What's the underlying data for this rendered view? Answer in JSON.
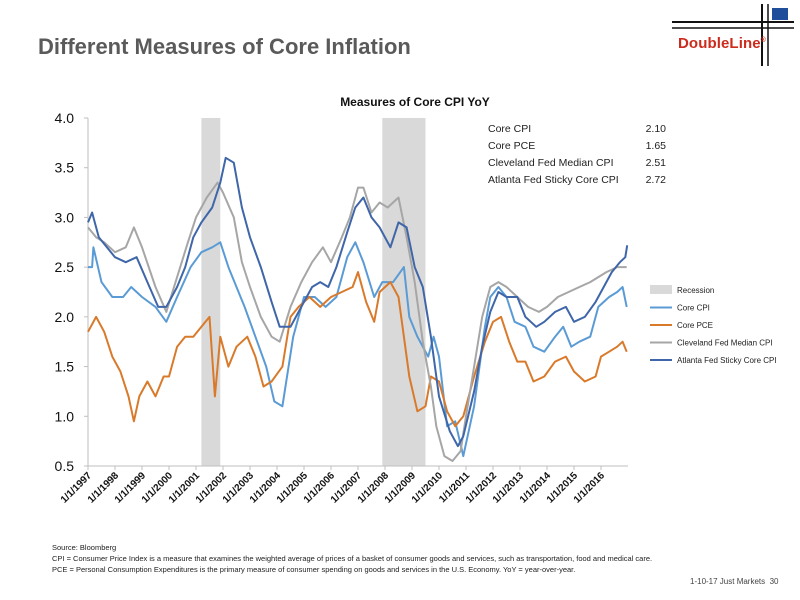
{
  "header": {
    "title": "Different Measures of Core Inflation",
    "logo_text": "DoubleLine",
    "logo_mark": "®"
  },
  "footer": {
    "source": "Source: Bloomberg",
    "note": "CPI = Consumer Price Index is a measure that examines the weighted average of prices of a basket of consumer goods and services, such as transportation, food and medical care. PCE = Personal Consumption Expenditures is the primary measure of consumer spending on goods and services in the U.S. Economy. YoY = year-over-year.",
    "page_label": "1-10-17 Just Markets",
    "page_number": "30"
  },
  "colors": {
    "title": "#5a5a5a",
    "brand_red": "#cc2b1d",
    "recession": "#d9d9d9",
    "core_cpi": "#5b9bd5",
    "core_pce": "#d97a2b",
    "cleveland": "#a6a6a6",
    "atlanta": "#3f66a8"
  },
  "chart_data": {
    "type": "line",
    "title": "Measures of Core CPI YoY",
    "xlabel": "",
    "ylabel": "",
    "ylim": [
      0.5,
      4.0
    ],
    "xlim": [
      1997.0,
      2017.0
    ],
    "y_ticks": [
      "0.5",
      "1.0",
      "1.5",
      "2.0",
      "2.5",
      "3.0",
      "3.5",
      "4.0"
    ],
    "x_ticks": [
      "1/1/1997",
      "1/1/1998",
      "1/1/1999",
      "1/1/2000",
      "1/1/2001",
      "1/1/2002",
      "1/1/2003",
      "1/1/2004",
      "1/1/2005",
      "1/1/2006",
      "1/1/2007",
      "1/1/2008",
      "1/1/2009",
      "1/1/2010",
      "1/1/2011",
      "1/1/2012",
      "1/1/2013",
      "1/1/2014",
      "1/1/2015",
      "1/1/2016"
    ],
    "grid": false,
    "legend_position": "right",
    "recession_label": "Recession",
    "recessions": [
      [
        2001.2,
        2001.9
      ],
      [
        2007.9,
        2009.5
      ]
    ],
    "summary_table": [
      {
        "label": "Core CPI",
        "value": "2.10"
      },
      {
        "label": "Core PCE",
        "value": "1.65"
      },
      {
        "label": "Cleveland Fed Median CPI",
        "value": "2.51"
      },
      {
        "label": "Atlanta Fed Sticky Core CPI",
        "value": "2.72"
      }
    ],
    "series": [
      {
        "name": "Core CPI",
        "color": "#5b9bd5",
        "points": [
          [
            1997.0,
            2.5
          ],
          [
            1997.15,
            2.5
          ],
          [
            1997.2,
            2.7
          ],
          [
            1997.5,
            2.35
          ],
          [
            1997.9,
            2.2
          ],
          [
            1998.3,
            2.2
          ],
          [
            1998.6,
            2.3
          ],
          [
            1999.0,
            2.2
          ],
          [
            1999.5,
            2.1
          ],
          [
            1999.9,
            1.95
          ],
          [
            2000.3,
            2.2
          ],
          [
            2000.8,
            2.5
          ],
          [
            2001.2,
            2.65
          ],
          [
            2001.6,
            2.7
          ],
          [
            2001.9,
            2.75
          ],
          [
            2002.2,
            2.5
          ],
          [
            2002.5,
            2.3
          ],
          [
            2002.8,
            2.1
          ],
          [
            2003.2,
            1.8
          ],
          [
            2003.6,
            1.5
          ],
          [
            2003.9,
            1.15
          ],
          [
            2004.2,
            1.1
          ],
          [
            2004.6,
            1.8
          ],
          [
            2005.0,
            2.2
          ],
          [
            2005.4,
            2.2
          ],
          [
            2005.8,
            2.1
          ],
          [
            2006.2,
            2.2
          ],
          [
            2006.6,
            2.6
          ],
          [
            2006.9,
            2.75
          ],
          [
            2007.2,
            2.55
          ],
          [
            2007.6,
            2.2
          ],
          [
            2007.9,
            2.35
          ],
          [
            2008.3,
            2.35
          ],
          [
            2008.7,
            2.5
          ],
          [
            2008.9,
            2.0
          ],
          [
            2009.2,
            1.8
          ],
          [
            2009.6,
            1.6
          ],
          [
            2009.8,
            1.8
          ],
          [
            2010.0,
            1.6
          ],
          [
            2010.3,
            0.9
          ],
          [
            2010.6,
            0.95
          ],
          [
            2010.9,
            0.6
          ],
          [
            2011.3,
            1.1
          ],
          [
            2011.7,
            1.9
          ],
          [
            2011.9,
            2.2
          ],
          [
            2012.2,
            2.3
          ],
          [
            2012.5,
            2.2
          ],
          [
            2012.8,
            1.95
          ],
          [
            2013.2,
            1.9
          ],
          [
            2013.5,
            1.7
          ],
          [
            2013.9,
            1.65
          ],
          [
            2014.3,
            1.8
          ],
          [
            2014.6,
            1.9
          ],
          [
            2014.9,
            1.7
          ],
          [
            2015.2,
            1.75
          ],
          [
            2015.6,
            1.8
          ],
          [
            2015.9,
            2.1
          ],
          [
            2016.3,
            2.2
          ],
          [
            2016.6,
            2.25
          ],
          [
            2016.8,
            2.3
          ],
          [
            2016.95,
            2.1
          ]
        ]
      },
      {
        "name": "Core PCE",
        "color": "#d97a2b",
        "points": [
          [
            1997.0,
            1.85
          ],
          [
            1997.3,
            2.0
          ],
          [
            1997.6,
            1.85
          ],
          [
            1997.9,
            1.6
          ],
          [
            1998.2,
            1.45
          ],
          [
            1998.5,
            1.2
          ],
          [
            1998.7,
            0.95
          ],
          [
            1998.9,
            1.2
          ],
          [
            1999.2,
            1.35
          ],
          [
            1999.5,
            1.2
          ],
          [
            1999.8,
            1.4
          ],
          [
            2000.0,
            1.4
          ],
          [
            2000.3,
            1.7
          ],
          [
            2000.6,
            1.8
          ],
          [
            2000.9,
            1.8
          ],
          [
            2001.2,
            1.9
          ],
          [
            2001.5,
            2.0
          ],
          [
            2001.7,
            1.2
          ],
          [
            2001.9,
            1.8
          ],
          [
            2002.2,
            1.5
          ],
          [
            2002.5,
            1.7
          ],
          [
            2002.9,
            1.8
          ],
          [
            2003.2,
            1.6
          ],
          [
            2003.5,
            1.3
          ],
          [
            2003.8,
            1.35
          ],
          [
            2004.2,
            1.5
          ],
          [
            2004.5,
            2.0
          ],
          [
            2004.8,
            2.1
          ],
          [
            2005.2,
            2.2
          ],
          [
            2005.6,
            2.1
          ],
          [
            2006.0,
            2.2
          ],
          [
            2006.4,
            2.25
          ],
          [
            2006.8,
            2.3
          ],
          [
            2007.0,
            2.45
          ],
          [
            2007.3,
            2.15
          ],
          [
            2007.6,
            1.95
          ],
          [
            2007.8,
            2.25
          ],
          [
            2008.2,
            2.35
          ],
          [
            2008.5,
            2.2
          ],
          [
            2008.7,
            1.8
          ],
          [
            2008.9,
            1.4
          ],
          [
            2009.2,
            1.05
          ],
          [
            2009.5,
            1.1
          ],
          [
            2009.7,
            1.4
          ],
          [
            2010.0,
            1.35
          ],
          [
            2010.3,
            1.05
          ],
          [
            2010.6,
            0.9
          ],
          [
            2010.9,
            1.0
          ],
          [
            2011.3,
            1.4
          ],
          [
            2011.7,
            1.75
          ],
          [
            2012.0,
            1.95
          ],
          [
            2012.3,
            2.0
          ],
          [
            2012.6,
            1.75
          ],
          [
            2012.9,
            1.55
          ],
          [
            2013.2,
            1.55
          ],
          [
            2013.5,
            1.35
          ],
          [
            2013.9,
            1.4
          ],
          [
            2014.3,
            1.55
          ],
          [
            2014.7,
            1.6
          ],
          [
            2015.0,
            1.45
          ],
          [
            2015.4,
            1.35
          ],
          [
            2015.8,
            1.4
          ],
          [
            2016.0,
            1.6
          ],
          [
            2016.3,
            1.65
          ],
          [
            2016.6,
            1.7
          ],
          [
            2016.8,
            1.75
          ],
          [
            2016.95,
            1.65
          ]
        ]
      },
      {
        "name": "Cleveland Fed Median CPI",
        "color": "#a6a6a6",
        "points": [
          [
            1997.0,
            2.9
          ],
          [
            1997.3,
            2.8
          ],
          [
            1997.6,
            2.75
          ],
          [
            1998.0,
            2.65
          ],
          [
            1998.4,
            2.7
          ],
          [
            1998.7,
            2.9
          ],
          [
            1999.0,
            2.7
          ],
          [
            1999.5,
            2.3
          ],
          [
            1999.9,
            2.05
          ],
          [
            2000.3,
            2.4
          ],
          [
            2000.7,
            2.75
          ],
          [
            2001.0,
            3.0
          ],
          [
            2001.4,
            3.2
          ],
          [
            2001.8,
            3.35
          ],
          [
            2002.0,
            3.25
          ],
          [
            2002.4,
            3.0
          ],
          [
            2002.7,
            2.55
          ],
          [
            2003.0,
            2.3
          ],
          [
            2003.4,
            2.0
          ],
          [
            2003.8,
            1.8
          ],
          [
            2004.1,
            1.75
          ],
          [
            2004.5,
            2.1
          ],
          [
            2004.9,
            2.35
          ],
          [
            2005.3,
            2.55
          ],
          [
            2005.7,
            2.7
          ],
          [
            2006.0,
            2.55
          ],
          [
            2006.4,
            2.8
          ],
          [
            2006.7,
            3.0
          ],
          [
            2007.0,
            3.3
          ],
          [
            2007.2,
            3.3
          ],
          [
            2007.5,
            3.05
          ],
          [
            2007.8,
            3.15
          ],
          [
            2008.1,
            3.1
          ],
          [
            2008.5,
            3.2
          ],
          [
            2008.8,
            2.8
          ],
          [
            2009.1,
            2.35
          ],
          [
            2009.4,
            1.75
          ],
          [
            2009.7,
            1.3
          ],
          [
            2009.9,
            0.9
          ],
          [
            2010.2,
            0.6
          ],
          [
            2010.5,
            0.55
          ],
          [
            2010.8,
            0.65
          ],
          [
            2011.0,
            1.0
          ],
          [
            2011.3,
            1.5
          ],
          [
            2011.6,
            2.0
          ],
          [
            2011.9,
            2.3
          ],
          [
            2012.2,
            2.35
          ],
          [
            2012.5,
            2.3
          ],
          [
            2012.9,
            2.2
          ],
          [
            2013.3,
            2.1
          ],
          [
            2013.7,
            2.05
          ],
          [
            2014.0,
            2.1
          ],
          [
            2014.4,
            2.2
          ],
          [
            2014.8,
            2.25
          ],
          [
            2015.2,
            2.3
          ],
          [
            2015.6,
            2.35
          ],
          [
            2015.9,
            2.4
          ],
          [
            2016.2,
            2.45
          ],
          [
            2016.6,
            2.5
          ],
          [
            2016.95,
            2.5
          ]
        ]
      },
      {
        "name": "Atlanta Fed Sticky Core CPI",
        "color": "#3f66a8",
        "points": [
          [
            1997.0,
            2.95
          ],
          [
            1997.15,
            3.05
          ],
          [
            1997.4,
            2.8
          ],
          [
            1997.7,
            2.7
          ],
          [
            1998.0,
            2.6
          ],
          [
            1998.4,
            2.55
          ],
          [
            1998.8,
            2.6
          ],
          [
            1999.2,
            2.35
          ],
          [
            1999.6,
            2.1
          ],
          [
            1999.9,
            2.1
          ],
          [
            2000.3,
            2.3
          ],
          [
            2000.6,
            2.5
          ],
          [
            2000.9,
            2.8
          ],
          [
            2001.2,
            2.95
          ],
          [
            2001.6,
            3.1
          ],
          [
            2001.9,
            3.35
          ],
          [
            2002.1,
            3.6
          ],
          [
            2002.4,
            3.55
          ],
          [
            2002.7,
            3.1
          ],
          [
            2003.0,
            2.8
          ],
          [
            2003.4,
            2.5
          ],
          [
            2003.8,
            2.15
          ],
          [
            2004.1,
            1.9
          ],
          [
            2004.5,
            1.9
          ],
          [
            2004.9,
            2.1
          ],
          [
            2005.3,
            2.3
          ],
          [
            2005.6,
            2.35
          ],
          [
            2005.9,
            2.3
          ],
          [
            2006.2,
            2.5
          ],
          [
            2006.6,
            2.85
          ],
          [
            2006.9,
            3.1
          ],
          [
            2007.2,
            3.2
          ],
          [
            2007.5,
            3.0
          ],
          [
            2007.8,
            2.9
          ],
          [
            2008.2,
            2.7
          ],
          [
            2008.5,
            2.95
          ],
          [
            2008.8,
            2.9
          ],
          [
            2009.1,
            2.5
          ],
          [
            2009.4,
            2.3
          ],
          [
            2009.7,
            1.8
          ],
          [
            2010.0,
            1.2
          ],
          [
            2010.4,
            0.85
          ],
          [
            2010.7,
            0.7
          ],
          [
            2010.9,
            0.8
          ],
          [
            2011.3,
            1.25
          ],
          [
            2011.6,
            1.7
          ],
          [
            2011.9,
            2.05
          ],
          [
            2012.2,
            2.25
          ],
          [
            2012.5,
            2.2
          ],
          [
            2012.9,
            2.2
          ],
          [
            2013.2,
            2.0
          ],
          [
            2013.6,
            1.9
          ],
          [
            2013.9,
            1.95
          ],
          [
            2014.3,
            2.05
          ],
          [
            2014.7,
            2.1
          ],
          [
            2015.0,
            1.95
          ],
          [
            2015.4,
            2.0
          ],
          [
            2015.8,
            2.15
          ],
          [
            2016.1,
            2.3
          ],
          [
            2016.4,
            2.45
          ],
          [
            2016.7,
            2.55
          ],
          [
            2016.9,
            2.6
          ],
          [
            2016.97,
            2.72
          ]
        ]
      }
    ]
  }
}
